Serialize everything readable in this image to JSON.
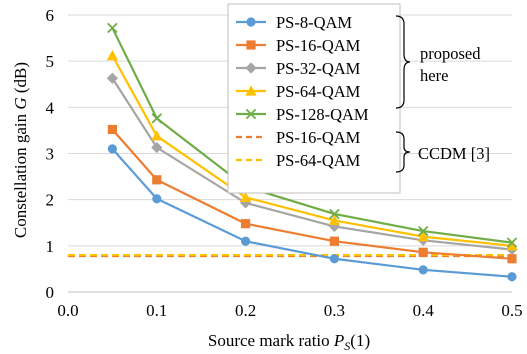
{
  "chart_data": {
    "type": "line",
    "xlabel": "Source mark ratio P",
    "xlabel_sub": "S",
    "xlabel_suffix": "(1)",
    "ylabel": "Constellation gain G (dB)",
    "xlim": [
      0.0,
      0.5
    ],
    "ylim": [
      0,
      6
    ],
    "x_ticks": [
      0.0,
      0.1,
      0.2,
      0.3,
      0.4,
      0.5
    ],
    "x_tick_labels": [
      "0.0",
      "0.1",
      "0.2",
      "0.3",
      "0.4",
      "0.5"
    ],
    "y_ticks": [
      0,
      1,
      2,
      3,
      4,
      5,
      6
    ],
    "y_tick_labels": [
      "0",
      "1",
      "2",
      "3",
      "4",
      "5",
      "6"
    ],
    "grid": "horizontal",
    "x": [
      0.05,
      0.1,
      0.2,
      0.3,
      0.4,
      0.5
    ],
    "series": [
      {
        "name": "PS-8-QAM",
        "marker": "circle",
        "color": "#5b9bd5",
        "values": [
          3.1,
          2.02,
          1.1,
          0.72,
          0.48,
          0.33
        ]
      },
      {
        "name": "PS-16-QAM",
        "marker": "square",
        "color": "#ed7d31",
        "values": [
          3.52,
          2.43,
          1.48,
          1.1,
          0.86,
          0.72
        ]
      },
      {
        "name": "PS-32-QAM",
        "marker": "diamond",
        "color": "#a5a5a5",
        "values": [
          4.63,
          3.13,
          1.93,
          1.42,
          1.12,
          0.92
        ]
      },
      {
        "name": "PS-64-QAM",
        "marker": "triangle",
        "color": "#ffc000",
        "values": [
          5.12,
          3.38,
          2.05,
          1.55,
          1.2,
          1.0
        ]
      },
      {
        "name": "PS-128-QAM",
        "marker": "x",
        "color": "#70ad47",
        "values": [
          5.72,
          3.76,
          2.28,
          1.69,
          1.32,
          1.07
        ]
      }
    ],
    "reference_lines": [
      {
        "name": "PS-16-QAM",
        "style": "dashed",
        "color": "#ed7d31",
        "value": 0.78
      },
      {
        "name": "PS-64-QAM",
        "style": "dashed",
        "color": "#ffc000",
        "value": 0.8
      }
    ],
    "legend_placement": "top-right",
    "annotations": {
      "proposed_line1": "proposed",
      "proposed_line2": "here",
      "ccdm": "CCDM [3]"
    }
  }
}
